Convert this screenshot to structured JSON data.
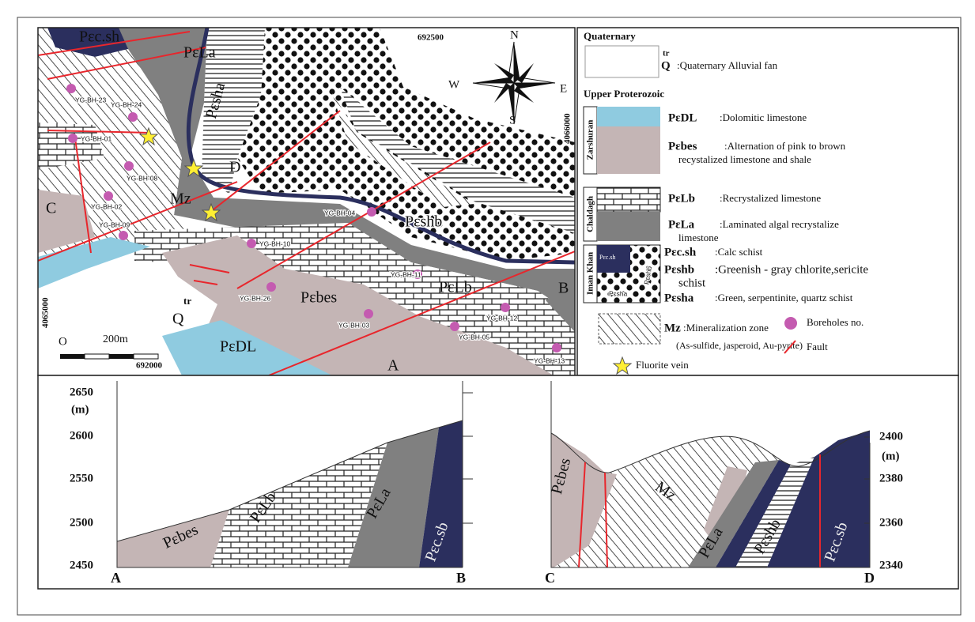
{
  "map": {
    "grid_labels": {
      "easting_1": "692500",
      "easting_2": "692000",
      "northing_1": "4066000",
      "northing_2": "4065000"
    },
    "compass": {
      "n": "N",
      "e": "E",
      "s": "S",
      "w": "W"
    },
    "scale": {
      "zero": "O",
      "length": "200m"
    },
    "unit_labels": {
      "c_sh": "Pɛc.sh",
      "la": "PɛLa",
      "sha": "Pɛsha",
      "d": "D",
      "mz": "Mz",
      "shb": "Pɛshb",
      "lb": "PɛLb",
      "bes": "Pɛbes",
      "dl": "PɛDL",
      "q": "Q",
      "q_sup": "tr",
      "c": "C",
      "a": "A",
      "b": "B"
    },
    "boreholes": [
      "YG-BH-23",
      "YG-BH-24",
      "YG-BH-01",
      "YG-BH-08",
      "YG-BH-02",
      "YG-BH-09",
      "YG-BH-10",
      "YG-BH-04",
      "YG-BH-11",
      "YG-BH-26",
      "YG-BH-03",
      "YG-BH-12",
      "YG-BH-05",
      "YG-BH-13"
    ]
  },
  "legend": {
    "quaternary": "Quaternary",
    "q_symbol": "Q",
    "q_sup": "tr",
    "q_desc": ":Quaternary Alluvial fan",
    "proterozoic": "Upper Proterozoic",
    "groups": {
      "zarshuran": "Zarshuran",
      "chaldagh": "Chaldagh",
      "iman_khan": "Iman Khan"
    },
    "items": {
      "dl": {
        "symbol": "PɛDL",
        "desc": [
          ":Dolomitic limestone"
        ]
      },
      "bes": {
        "symbol": "Pɛbes",
        "desc": [
          ":Alternation of pink to brown",
          "recystalized limestone and shale"
        ]
      },
      "lb": {
        "symbol": "PɛLb",
        "desc": [
          ":Recrystalized limestone"
        ]
      },
      "la": {
        "symbol": "PɛLa",
        "desc": [
          ":Laminated algal recrystalize",
          "limestone"
        ]
      },
      "csh": {
        "symbol": "Pɛc.sh",
        "desc": [
          ":Calc schist"
        ]
      },
      "shb": {
        "symbol": "Pɛshb",
        "desc": [
          ":Greenish - gray chlorite,sericite",
          "schist"
        ]
      },
      "sha": {
        "symbol": "Pɛsha",
        "desc": [
          ":Green, serpentinite, quartz schist"
        ]
      },
      "mz": {
        "symbol": "Mz",
        "desc": [
          ":Mineralization zone",
          "(As-sulfide, jasperoid, Au-pyrite)"
        ]
      }
    },
    "swatch_labels": {
      "csh": "Pɛc.sh",
      "sha": "Pɛsha",
      "shb": "Pɛshb"
    },
    "boreholes": "Boreholes no.",
    "fault": "Fault",
    "fluorite": "Fluorite vein"
  },
  "section_ab": {
    "yticks": [
      2650,
      2600,
      2550,
      2500,
      2450
    ],
    "unit": "(m)",
    "ends": [
      "A",
      "B"
    ],
    "labels": [
      "Pɛbes",
      "PɛLb",
      "PɛLa",
      "Pɛc.sb"
    ]
  },
  "section_cd": {
    "yticks": [
      2400,
      2380,
      2360,
      2340
    ],
    "unit": "(m)",
    "ends": [
      "C",
      "D"
    ],
    "labels": [
      "Pɛbes",
      "Mz",
      "PɛLa",
      "Pɛshb",
      "Pɛc.sb"
    ]
  }
}
